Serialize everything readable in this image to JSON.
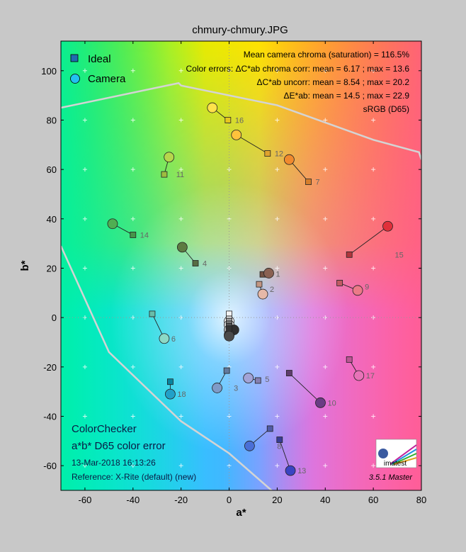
{
  "chart_data": {
    "type": "scatter",
    "title": "chmury-chmury.JPG",
    "xlabel": "a*",
    "ylabel": "b*",
    "xlim": [
      -70,
      80
    ],
    "ylim": [
      -70,
      112
    ],
    "xticks": [
      -60,
      -40,
      -20,
      0,
      20,
      40,
      60,
      80
    ],
    "yticks": [
      -60,
      -40,
      -20,
      0,
      20,
      40,
      60,
      80,
      100
    ],
    "legend": {
      "ideal": "Ideal",
      "camera": "Camera",
      "placement": "top-left"
    },
    "stats": [
      "Mean camera chroma (saturation) = 116.5%",
      "Color errors: ΔC*ab chroma corr:  mean = 6.17 ;  max = 13.6",
      "ΔC*ab uncorr:  mean = 8.54 ;  max = 20.2",
      "ΔE*ab:  mean = 14.5 ;  max = 22.9",
      "sRGB (D65)"
    ],
    "info": {
      "line1": "ColorChecker",
      "line2": "a*b* D65 color error",
      "date": "13-Mar-2018 16:13:26",
      "reference": "Reference: X-Rite (default) (new)"
    },
    "logo_text": "imatest",
    "version": "3.5.1  Master",
    "gamut": {
      "upper": [
        [
          -70,
          85
        ],
        [
          -21,
          95
        ],
        [
          -20,
          94
        ],
        [
          20,
          86
        ],
        [
          40,
          79
        ],
        [
          60,
          72
        ],
        [
          79,
          67
        ],
        [
          80,
          64
        ]
      ],
      "lower": [
        [
          -70,
          29
        ],
        [
          -50,
          -14
        ],
        [
          -20,
          -42
        ],
        [
          0,
          -55
        ],
        [
          20,
          -72
        ]
      ]
    },
    "patches": [
      {
        "label": "1",
        "ideal": [
          14,
          17.5
        ],
        "camera": [
          16.5,
          18
        ],
        "ideal_color": "#735243",
        "camera_color": "#8a6152"
      },
      {
        "label": "2",
        "ideal": [
          12.5,
          13.5
        ],
        "camera": [
          14,
          9.5
        ],
        "ideal_color": "#c29682",
        "camera_color": "#e6b8a8"
      },
      {
        "label": "3",
        "ideal": [
          -1,
          -21.5
        ],
        "camera": [
          -5,
          -28.5
        ],
        "ideal_color": "#627a9d",
        "camera_color": "#7f9bc7"
      },
      {
        "label": "4",
        "ideal": [
          -14,
          22
        ],
        "camera": [
          -19.5,
          28.5
        ],
        "ideal_color": "#576c43",
        "camera_color": "#5e7a42"
      },
      {
        "label": "5",
        "ideal": [
          12,
          -25.5
        ],
        "camera": [
          8,
          -24.5
        ],
        "ideal_color": "#8580b1",
        "camera_color": "#a3a3d6"
      },
      {
        "label": "6",
        "ideal": [
          -32,
          1.5
        ],
        "camera": [
          -27,
          -8.5
        ],
        "ideal_color": "#67bdaa",
        "camera_color": "#8cd9c6"
      },
      {
        "label": "7",
        "ideal": [
          33,
          55
        ],
        "camera": [
          25,
          64
        ],
        "ideal_color": "#d67e2c",
        "camera_color": "#f08a2e"
      },
      {
        "label": "8",
        "ideal": [
          17,
          -45
        ],
        "camera": [
          8.5,
          -52
        ],
        "ideal_color": "#505ba6",
        "camera_color": "#4a6fd6"
      },
      {
        "label": "9",
        "ideal": [
          46,
          14
        ],
        "camera": [
          53.5,
          11
        ],
        "ideal_color": "#c15a63",
        "camera_color": "#ec7a88"
      },
      {
        "label": "10",
        "ideal": [
          25,
          -22.5
        ],
        "camera": [
          38,
          -34.5
        ],
        "ideal_color": "#5e3c6c",
        "camera_color": "#6a3c84"
      },
      {
        "label": "11",
        "ideal": [
          -27,
          58
        ],
        "camera": [
          -25,
          65
        ],
        "ideal_color": "#9dbc40",
        "camera_color": "#b6d64c"
      },
      {
        "label": "12",
        "ideal": [
          16,
          66.5
        ],
        "camera": [
          3,
          74
        ],
        "ideal_color": "#e0a32e",
        "camera_color": "#ffc23c"
      },
      {
        "label": "13",
        "ideal": [
          21,
          -49.5
        ],
        "camera": [
          25.5,
          -62
        ],
        "ideal_color": "#383d96",
        "camera_color": "#3a44c2"
      },
      {
        "label": "14",
        "ideal": [
          -40,
          33.5
        ],
        "camera": [
          -48.5,
          38
        ],
        "ideal_color": "#469449",
        "camera_color": "#4fae52"
      },
      {
        "label": "15",
        "ideal": [
          50,
          25.5
        ],
        "camera": [
          66,
          37
        ],
        "ideal_color": "#af363c",
        "camera_color": "#e0303a"
      },
      {
        "label": "16",
        "ideal": [
          -0.5,
          80
        ],
        "camera": [
          -7,
          85
        ],
        "ideal_color": "#e7c71f",
        "camera_color": "#ffe24a"
      },
      {
        "label": "17",
        "ideal": [
          50,
          -17
        ],
        "camera": [
          54,
          -23.5
        ],
        "ideal_color": "#bb5695",
        "camera_color": "#e873b8"
      },
      {
        "label": "18",
        "ideal": [
          -24.5,
          -26
        ],
        "camera": [
          -24.5,
          -31
        ],
        "ideal_color": "#0885a1",
        "camera_color": "#22a0c8"
      },
      {
        "label": "",
        "ideal": [
          0,
          1.5
        ],
        "camera": [
          0,
          -1.5
        ],
        "ideal_color": "#f3f3f2",
        "camera_color": "#ffffff"
      },
      {
        "label": "",
        "ideal": [
          0,
          -0.5
        ],
        "camera": [
          0,
          -3
        ],
        "ideal_color": "#c8c8c8",
        "camera_color": "#d8d8d8"
      },
      {
        "label": "",
        "ideal": [
          0,
          -1.5
        ],
        "camera": [
          0,
          -5
        ],
        "ideal_color": "#a0a0a0",
        "camera_color": "#b4b4b4"
      },
      {
        "label": "",
        "ideal": [
          0,
          -2.5
        ],
        "camera": [
          2,
          -5
        ],
        "ideal_color": "#7a7a79",
        "camera_color": "#303030"
      },
      {
        "label": "",
        "ideal": [
          0,
          -3.5
        ],
        "camera": [
          0,
          -7
        ],
        "ideal_color": "#555555",
        "camera_color": "#606060"
      },
      {
        "label": "",
        "ideal": [
          0,
          -4.5
        ],
        "camera": [
          0,
          -7.5
        ],
        "ideal_color": "#343434",
        "camera_color": "#4a4a4a"
      }
    ]
  }
}
